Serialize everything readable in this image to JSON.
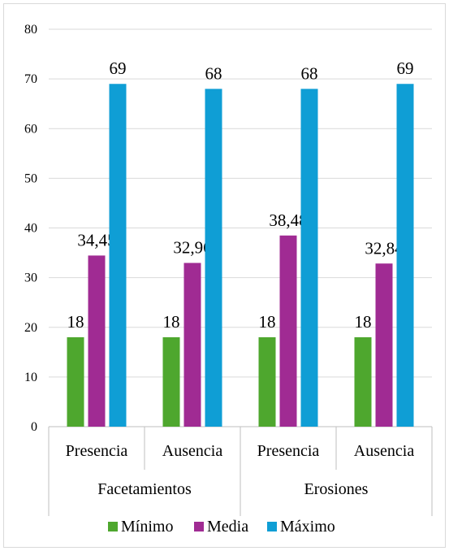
{
  "chart_data": {
    "type": "bar",
    "title": "",
    "xlabel": "",
    "ylabel": "",
    "ylim": [
      0,
      80
    ],
    "yticks": [
      0,
      10,
      20,
      30,
      40,
      50,
      60,
      70,
      80
    ],
    "grid": true,
    "legend_position": "bottom",
    "categories": [
      "Presencia",
      "Ausencia",
      "Presencia",
      "Ausencia"
    ],
    "groups": [
      {
        "label": "Facetamientos",
        "categories": [
          "Presencia",
          "Ausencia"
        ]
      },
      {
        "label": "Erosiones",
        "categories": [
          "Presencia",
          "Ausencia"
        ]
      }
    ],
    "series": [
      {
        "name": "Mínimo",
        "color": "#4ea72e",
        "values": [
          18,
          18,
          18,
          18
        ],
        "labels": [
          "18",
          "18",
          "18",
          "18"
        ]
      },
      {
        "name": "Media",
        "color": "#a02b93",
        "values": [
          34.45,
          32.96,
          38.48,
          32.84
        ],
        "labels": [
          "34,45",
          "32,96",
          "38,48",
          "32,84"
        ]
      },
      {
        "name": "Máximo",
        "color": "#0f9ed5",
        "values": [
          69,
          68,
          68,
          69
        ],
        "labels": [
          "69",
          "68",
          "68",
          "69"
        ]
      }
    ]
  }
}
